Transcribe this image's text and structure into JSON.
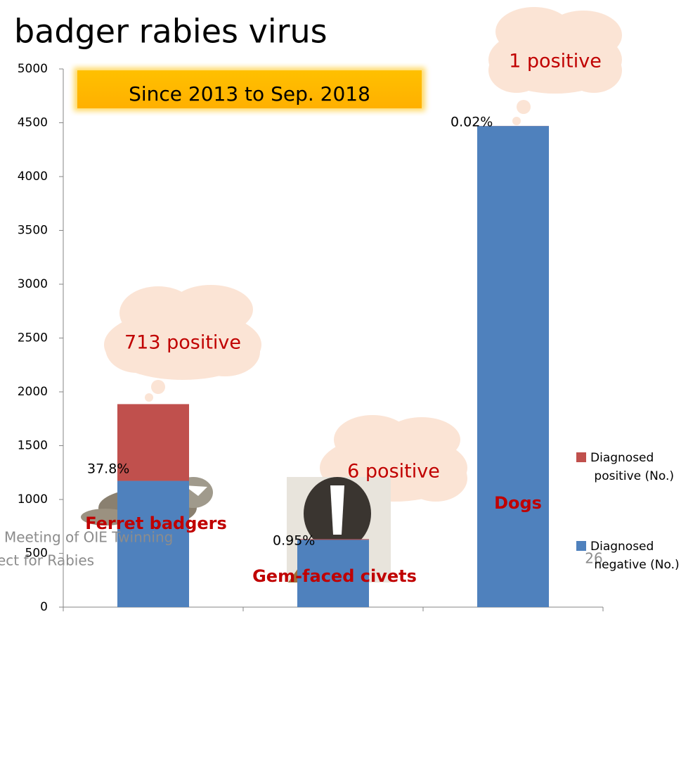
{
  "chart_data": {
    "type": "stacked-bar",
    "title": "badger rabies virus",
    "subtitle": "Since 2013 to Sep. 2018",
    "categories": [
      "Ferret badgers",
      "Gem-faced civets",
      "Dogs"
    ],
    "series": [
      {
        "name": "Diagnosed negative (No.)",
        "color": "#4f81bd",
        "values": [
          1173,
          626,
          4470
        ]
      },
      {
        "name": "Diagnosed positive (No.)",
        "color": "#c0504d",
        "values": [
          713,
          6,
          1
        ]
      }
    ],
    "percent_labels": [
      "37.8%",
      "0.95%",
      "0.02%"
    ],
    "callouts": [
      "713 positive",
      "6 positive",
      "1 positive"
    ],
    "ylim": [
      0,
      5000
    ],
    "yticks": [
      0,
      500,
      1000,
      1500,
      2000,
      2500,
      3000,
      3500,
      4000,
      4500,
      5000
    ],
    "footer": [
      "Meeting of OIE Twinning",
      "ect for Rabies"
    ],
    "page_number": "26"
  }
}
